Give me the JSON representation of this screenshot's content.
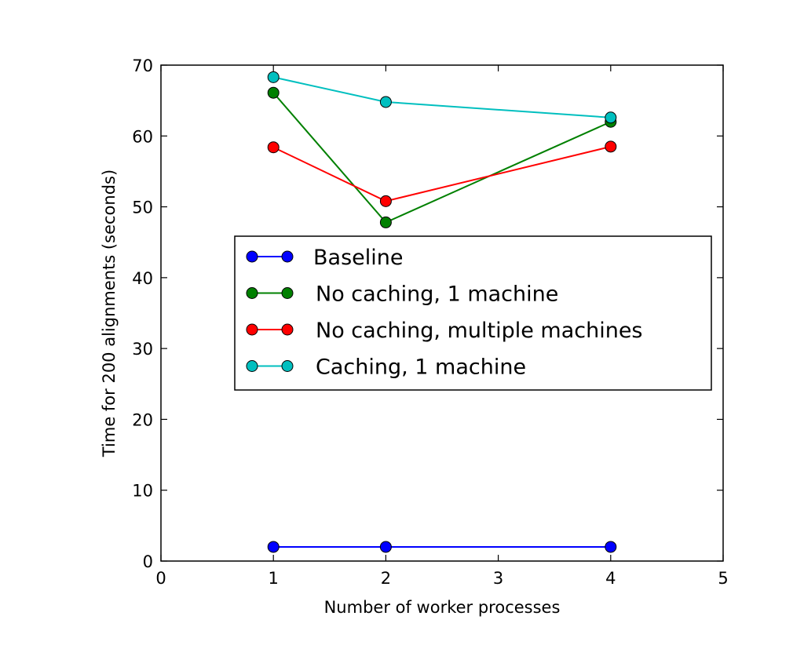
{
  "chart_data": {
    "type": "line",
    "title": "",
    "xlabel": "Number of worker processes",
    "ylabel": "Time for 200 alignments (seconds)",
    "xlim": [
      0,
      5
    ],
    "ylim": [
      0,
      70
    ],
    "xticks": [
      0,
      1,
      2,
      3,
      4,
      5
    ],
    "yticks": [
      0,
      10,
      20,
      30,
      40,
      50,
      60,
      70
    ],
    "x": [
      1,
      2,
      4
    ],
    "grid": false,
    "legend_position": "center",
    "series": [
      {
        "name": "Baseline",
        "color": "#0000ff",
        "values": [
          2.0,
          2.0,
          2.0
        ]
      },
      {
        "name": "No caching, 1 machine",
        "color": "#008000",
        "values": [
          66.1,
          47.8,
          62.0
        ]
      },
      {
        "name": "No caching, multiple machines",
        "color": "#ff0000",
        "values": [
          58.4,
          50.8,
          58.5
        ]
      },
      {
        "name": "Caching, 1 machine",
        "color": "#00bfbf",
        "values": [
          68.3,
          64.8,
          62.6
        ]
      }
    ]
  }
}
